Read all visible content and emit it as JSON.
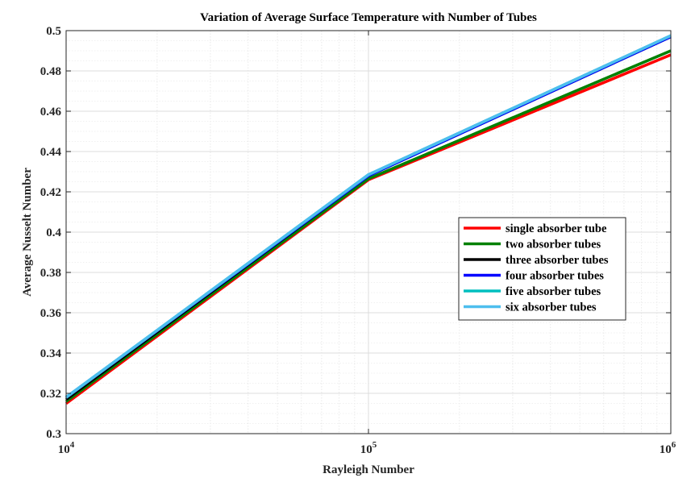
{
  "chart_data": {
    "type": "line",
    "title": "Variation of Average Surface Temperature with Number of Tubes",
    "xlabel": "Rayleigh Number",
    "ylabel": "Average Nusselt Number",
    "xscale": "log",
    "xlim": [
      10000,
      1000000
    ],
    "ylim": [
      0.3,
      0.5
    ],
    "grid": true,
    "minor_grid": true,
    "legend_placement": "right",
    "x": [
      10000,
      100000,
      1000000
    ],
    "x_ticks": [
      {
        "value": 10000,
        "base": "10",
        "exp": "4"
      },
      {
        "value": 100000,
        "base": "10",
        "exp": "5"
      },
      {
        "value": 1000000,
        "base": "10",
        "exp": "6"
      }
    ],
    "y_ticks": [
      "0.3",
      "0.32",
      "0.34",
      "0.36",
      "0.38",
      "0.4",
      "0.42",
      "0.44",
      "0.46",
      "0.48",
      "0.5"
    ],
    "series": [
      {
        "name": "single absorber tube",
        "color": "#ff0000",
        "values": [
          0.315,
          0.426,
          0.488
        ]
      },
      {
        "name": "two absorber tubes",
        "color": "#008000",
        "values": [
          0.316,
          0.4265,
          0.49
        ]
      },
      {
        "name": "three absorber tubes",
        "color": "#000000",
        "values": [
          0.317,
          0.428,
          0.497
        ]
      },
      {
        "name": "four absorber tubes",
        "color": "#0000ff",
        "values": [
          0.318,
          0.428,
          0.497
        ]
      },
      {
        "name": "five absorber tubes",
        "color": "#00bfbf",
        "values": [
          0.318,
          0.4285,
          0.4975
        ]
      },
      {
        "name": "six absorber tubes",
        "color": "#4dbeee",
        "values": [
          0.318,
          0.4285,
          0.4975
        ]
      }
    ]
  }
}
